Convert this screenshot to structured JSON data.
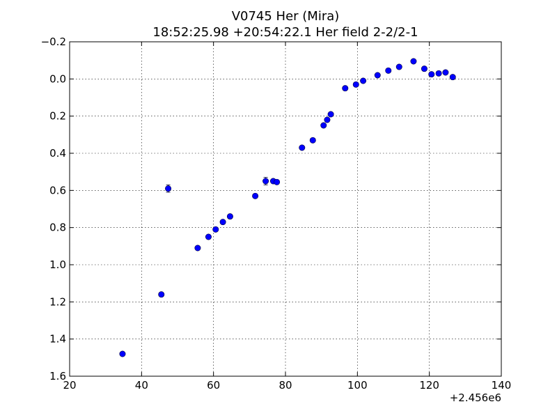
{
  "chart_data": {
    "type": "scatter",
    "title": "V0745 Her (Mira)",
    "subtitle": "18:52:25.98 +20:54:22.1 Her field 2-2/2-1",
    "xlabel": "",
    "ylabel": "",
    "x_offset_label": "+2.456e6",
    "xlim": [
      20,
      140
    ],
    "ylim": [
      1.6,
      -0.2
    ],
    "y_inverted": true,
    "grid": true,
    "x_ticks": [
      20,
      40,
      60,
      80,
      100,
      120,
      140
    ],
    "x_tick_labels": [
      "20",
      "40",
      "60",
      "80",
      "100",
      "120",
      "140"
    ],
    "y_ticks": [
      -0.2,
      0.0,
      0.2,
      0.4,
      0.6,
      0.8,
      1.0,
      1.2,
      1.4,
      1.6
    ],
    "y_tick_labels": [
      "−0.2",
      "0.0",
      "0.2",
      "0.4",
      "0.6",
      "0.8",
      "1.0",
      "1.2",
      "1.4",
      "1.6"
    ],
    "marker_color": "#0000ff",
    "series": [
      {
        "points": [
          {
            "x": 34.7,
            "y": 1.48,
            "err": 0.01
          },
          {
            "x": 45.5,
            "y": 1.16,
            "err": 0.01
          },
          {
            "x": 47.4,
            "y": 0.59,
            "err": 0.02
          },
          {
            "x": 55.6,
            "y": 0.91,
            "err": 0.01
          },
          {
            "x": 58.6,
            "y": 0.85,
            "err": 0.01
          },
          {
            "x": 60.6,
            "y": 0.81,
            "err": 0.01
          },
          {
            "x": 62.6,
            "y": 0.77,
            "err": 0.01
          },
          {
            "x": 64.6,
            "y": 0.74,
            "err": 0.01
          },
          {
            "x": 71.6,
            "y": 0.63,
            "err": 0.01
          },
          {
            "x": 74.5,
            "y": 0.55,
            "err": 0.02
          },
          {
            "x": 76.6,
            "y": 0.55,
            "err": 0.01
          },
          {
            "x": 77.6,
            "y": 0.555,
            "err": 0.01
          },
          {
            "x": 84.6,
            "y": 0.37,
            "err": 0.01
          },
          {
            "x": 87.6,
            "y": 0.33,
            "err": 0.01
          },
          {
            "x": 90.6,
            "y": 0.25,
            "err": 0.01
          },
          {
            "x": 91.6,
            "y": 0.22,
            "err": 0.01
          },
          {
            "x": 92.6,
            "y": 0.19,
            "err": 0.01
          },
          {
            "x": 96.6,
            "y": 0.05,
            "err": 0.01
          },
          {
            "x": 99.6,
            "y": 0.03,
            "err": 0.01
          },
          {
            "x": 101.6,
            "y": 0.01,
            "err": 0.01
          },
          {
            "x": 105.6,
            "y": -0.02,
            "err": 0.01
          },
          {
            "x": 108.6,
            "y": -0.045,
            "err": 0.01
          },
          {
            "x": 111.6,
            "y": -0.065,
            "err": 0.01
          },
          {
            "x": 115.6,
            "y": -0.095,
            "err": 0.01
          },
          {
            "x": 118.6,
            "y": -0.055,
            "err": 0.01
          },
          {
            "x": 120.6,
            "y": -0.025,
            "err": 0.01
          },
          {
            "x": 122.6,
            "y": -0.03,
            "err": 0.01
          },
          {
            "x": 124.5,
            "y": -0.035,
            "err": 0.01
          },
          {
            "x": 126.5,
            "y": -0.01,
            "err": 0.01
          }
        ]
      }
    ]
  }
}
